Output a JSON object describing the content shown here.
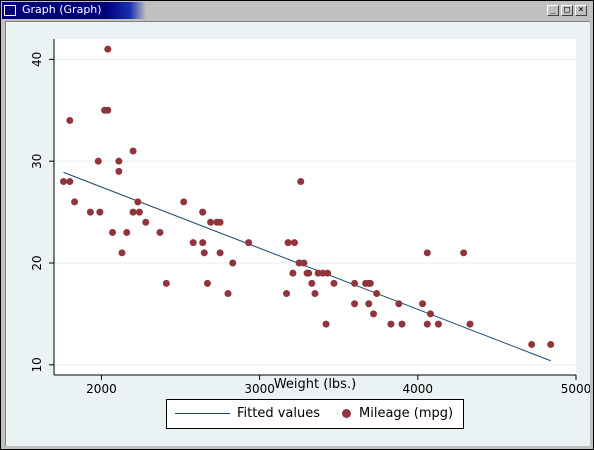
{
  "window": {
    "title": "Graph (Graph)",
    "minimize_label": "_",
    "maximize_label": "□",
    "close_label": "×"
  },
  "colors": {
    "plot_bg": "#ffffff",
    "outer_bg": "#eaf2f3",
    "marker": "#90353b",
    "fit_line": "#1a476f",
    "titlebar": "#00007b"
  },
  "chart_data": {
    "type": "scatter",
    "xlabel": "Weight (lbs.)",
    "ylabel": "",
    "xlim": [
      1700,
      5000
    ],
    "ylim": [
      9,
      42
    ],
    "xticks": [
      2000,
      3000,
      4000,
      5000
    ],
    "yticks": [
      10,
      20,
      30,
      40
    ],
    "grid": "horizontal",
    "legend": "bottom",
    "series": [
      {
        "name": "Fitted values",
        "type": "line",
        "x": [
          1760,
          4840
        ],
        "y": [
          28.9,
          10.4
        ]
      },
      {
        "name": "Mileage (mpg)",
        "type": "scatter",
        "x": [
          1760,
          1800,
          1800,
          1830,
          1930,
          1980,
          1990,
          2020,
          2040,
          2040,
          2070,
          2110,
          2110,
          2130,
          2160,
          2200,
          2200,
          2230,
          2240,
          2280,
          2370,
          2410,
          2520,
          2580,
          2640,
          2640,
          2650,
          2670,
          2690,
          2730,
          2750,
          2750,
          2800,
          2830,
          2930,
          3170,
          3180,
          3210,
          3220,
          3250,
          3260,
          3280,
          3300,
          3310,
          3330,
          3350,
          3370,
          3400,
          3420,
          3430,
          3470,
          3600,
          3600,
          3670,
          3690,
          3690,
          3700,
          3720,
          3740,
          3830,
          3880,
          3900,
          4030,
          4060,
          4060,
          4080,
          4130,
          4290,
          4330,
          4720,
          4840
        ],
        "y": [
          28,
          28,
          34,
          26,
          25,
          30,
          25,
          35,
          35,
          41,
          23,
          29,
          30,
          21,
          23,
          31,
          25,
          26,
          25,
          24,
          23,
          18,
          26,
          22,
          22,
          25,
          21,
          18,
          24,
          24,
          24,
          21,
          17,
          20,
          22,
          17,
          22,
          19,
          22,
          20,
          28,
          20,
          19,
          19,
          18,
          17,
          19,
          19,
          14,
          19,
          18,
          16,
          18,
          18,
          18,
          16,
          18,
          15,
          17,
          14,
          16,
          14,
          16,
          21,
          14,
          15,
          14,
          21,
          14,
          12,
          12
        ]
      }
    ]
  }
}
